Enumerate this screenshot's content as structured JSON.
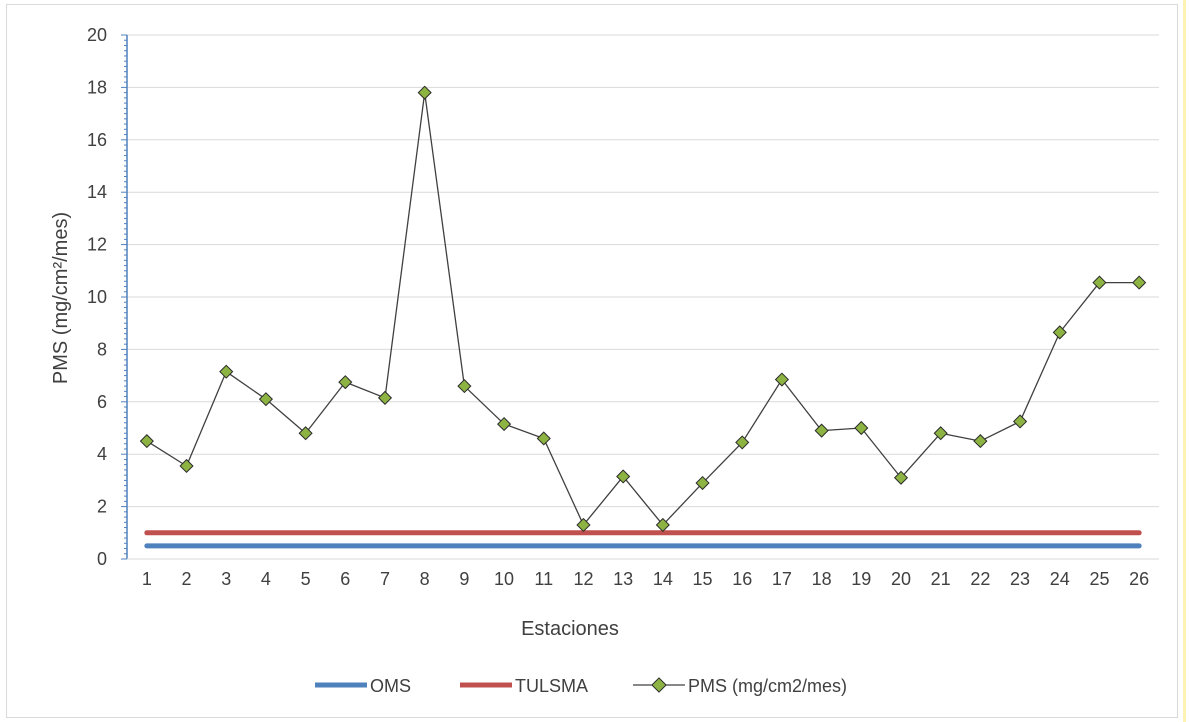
{
  "chart_data": {
    "type": "line",
    "title": "",
    "xlabel": "Estaciones",
    "ylabel": "PMS (mg/cm²/mes)",
    "ylim": [
      0,
      20
    ],
    "yticks": [
      0,
      2,
      4,
      6,
      8,
      10,
      12,
      14,
      16,
      18,
      20
    ],
    "grid": true,
    "legend_position": "bottom",
    "categories": [
      "1",
      "2",
      "3",
      "4",
      "5",
      "6",
      "7",
      "8",
      "9",
      "10",
      "11",
      "12",
      "13",
      "14",
      "15",
      "16",
      "17",
      "18",
      "19",
      "20",
      "21",
      "22",
      "23",
      "24",
      "25",
      "26"
    ],
    "series": [
      {
        "name": "OMS",
        "color": "#4f81bd",
        "style": "thick-line",
        "values": [
          0.5,
          0.5,
          0.5,
          0.5,
          0.5,
          0.5,
          0.5,
          0.5,
          0.5,
          0.5,
          0.5,
          0.5,
          0.5,
          0.5,
          0.5,
          0.5,
          0.5,
          0.5,
          0.5,
          0.5,
          0.5,
          0.5,
          0.5,
          0.5,
          0.5,
          0.5
        ]
      },
      {
        "name": "TULSMA",
        "color": "#c0504d",
        "style": "thick-line",
        "values": [
          1,
          1,
          1,
          1,
          1,
          1,
          1,
          1,
          1,
          1,
          1,
          1,
          1,
          1,
          1,
          1,
          1,
          1,
          1,
          1,
          1,
          1,
          1,
          1,
          1,
          1
        ]
      },
      {
        "name": "PMS (mg/cm2/mes)",
        "color": "#404040",
        "marker_color": "#8db443",
        "style": "line-diamond",
        "values": [
          4.5,
          3.55,
          7.15,
          6.1,
          4.8,
          6.75,
          6.15,
          17.8,
          6.6,
          5.15,
          4.6,
          1.3,
          3.15,
          1.3,
          2.9,
          4.45,
          6.85,
          4.9,
          5.0,
          3.1,
          4.8,
          4.5,
          5.25,
          8.65,
          10.55,
          10.55
        ]
      }
    ]
  }
}
